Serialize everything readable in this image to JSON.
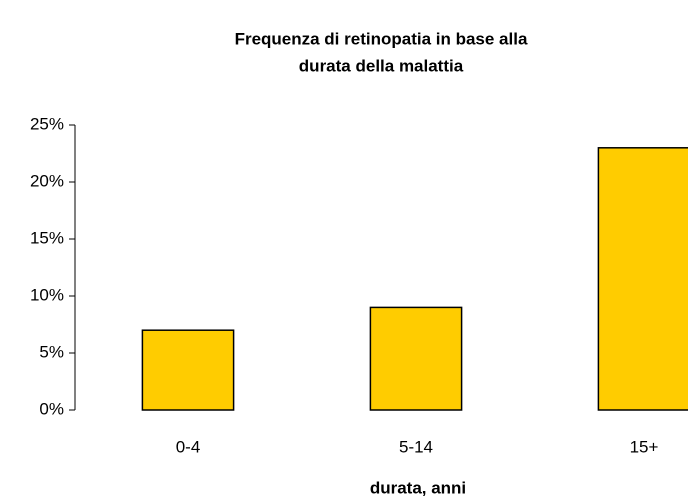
{
  "chart_data": {
    "type": "bar",
    "title": [
      "Frequenza di retinopatia in base alla",
      "durata della malattia"
    ],
    "x_label": "durata, anni",
    "categories": [
      "0-4",
      "5-14",
      "15+"
    ],
    "values": [
      7,
      9,
      23
    ],
    "color": "#ffcc00",
    "ylim": [
      0,
      25
    ],
    "yticks": [
      {
        "value": 0,
        "label": "0%"
      },
      {
        "value": 5,
        "label": "5%"
      },
      {
        "value": 10,
        "label": "10%"
      },
      {
        "value": 15,
        "label": "15%"
      },
      {
        "value": 20,
        "label": "20%"
      },
      {
        "value": 25,
        "label": "25%"
      }
    ],
    "grid": false
  }
}
